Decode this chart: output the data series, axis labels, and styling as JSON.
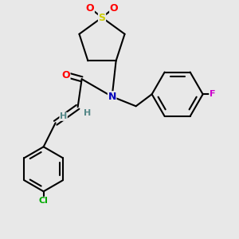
{
  "bg_color": "#e8e8e8",
  "bond_color": "#000000",
  "atom_colors": {
    "S": "#cccc00",
    "O": "#ff0000",
    "N": "#0000bb",
    "F": "#cc00cc",
    "Cl": "#00aa00",
    "H": "#558888",
    "C": "#000000"
  },
  "figsize": [
    3.0,
    3.0
  ],
  "dpi": 100
}
